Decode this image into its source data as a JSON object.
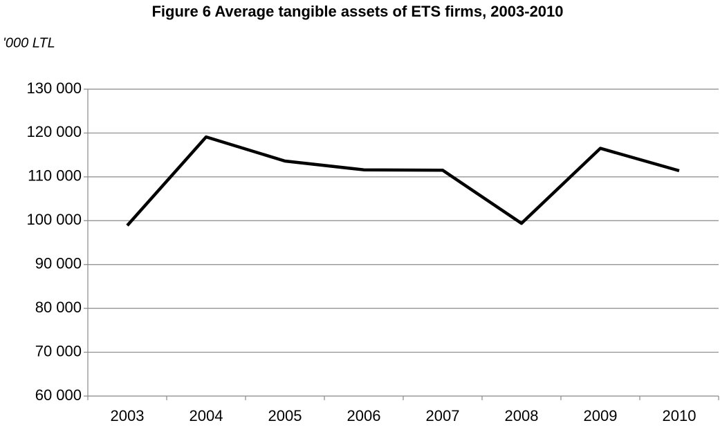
{
  "chart_data": {
    "type": "line",
    "title": "Figure 6 Average tangible assets of ETS firms, 2003-2010",
    "y_label": "'000 LTL",
    "categories": [
      "2003",
      "2004",
      "2005",
      "2006",
      "2007",
      "2008",
      "2009",
      "2010"
    ],
    "series": [
      {
        "name": "Average tangible assets",
        "color": "#000000",
        "values": [
          98900,
          119100,
          113600,
          111600,
          111500,
          99400,
          116500,
          111400
        ]
      }
    ],
    "ylim": [
      60000,
      130000
    ],
    "yticks": [
      {
        "value": 60000,
        "label": "60 000"
      },
      {
        "value": 70000,
        "label": "70 000"
      },
      {
        "value": 80000,
        "label": "80 000"
      },
      {
        "value": 90000,
        "label": "90 000"
      },
      {
        "value": 100000,
        "label": "100 000"
      },
      {
        "value": 110000,
        "label": "110 000"
      },
      {
        "value": 120000,
        "label": "120 000"
      },
      {
        "value": 130000,
        "label": "130 000"
      }
    ],
    "grid": true
  }
}
